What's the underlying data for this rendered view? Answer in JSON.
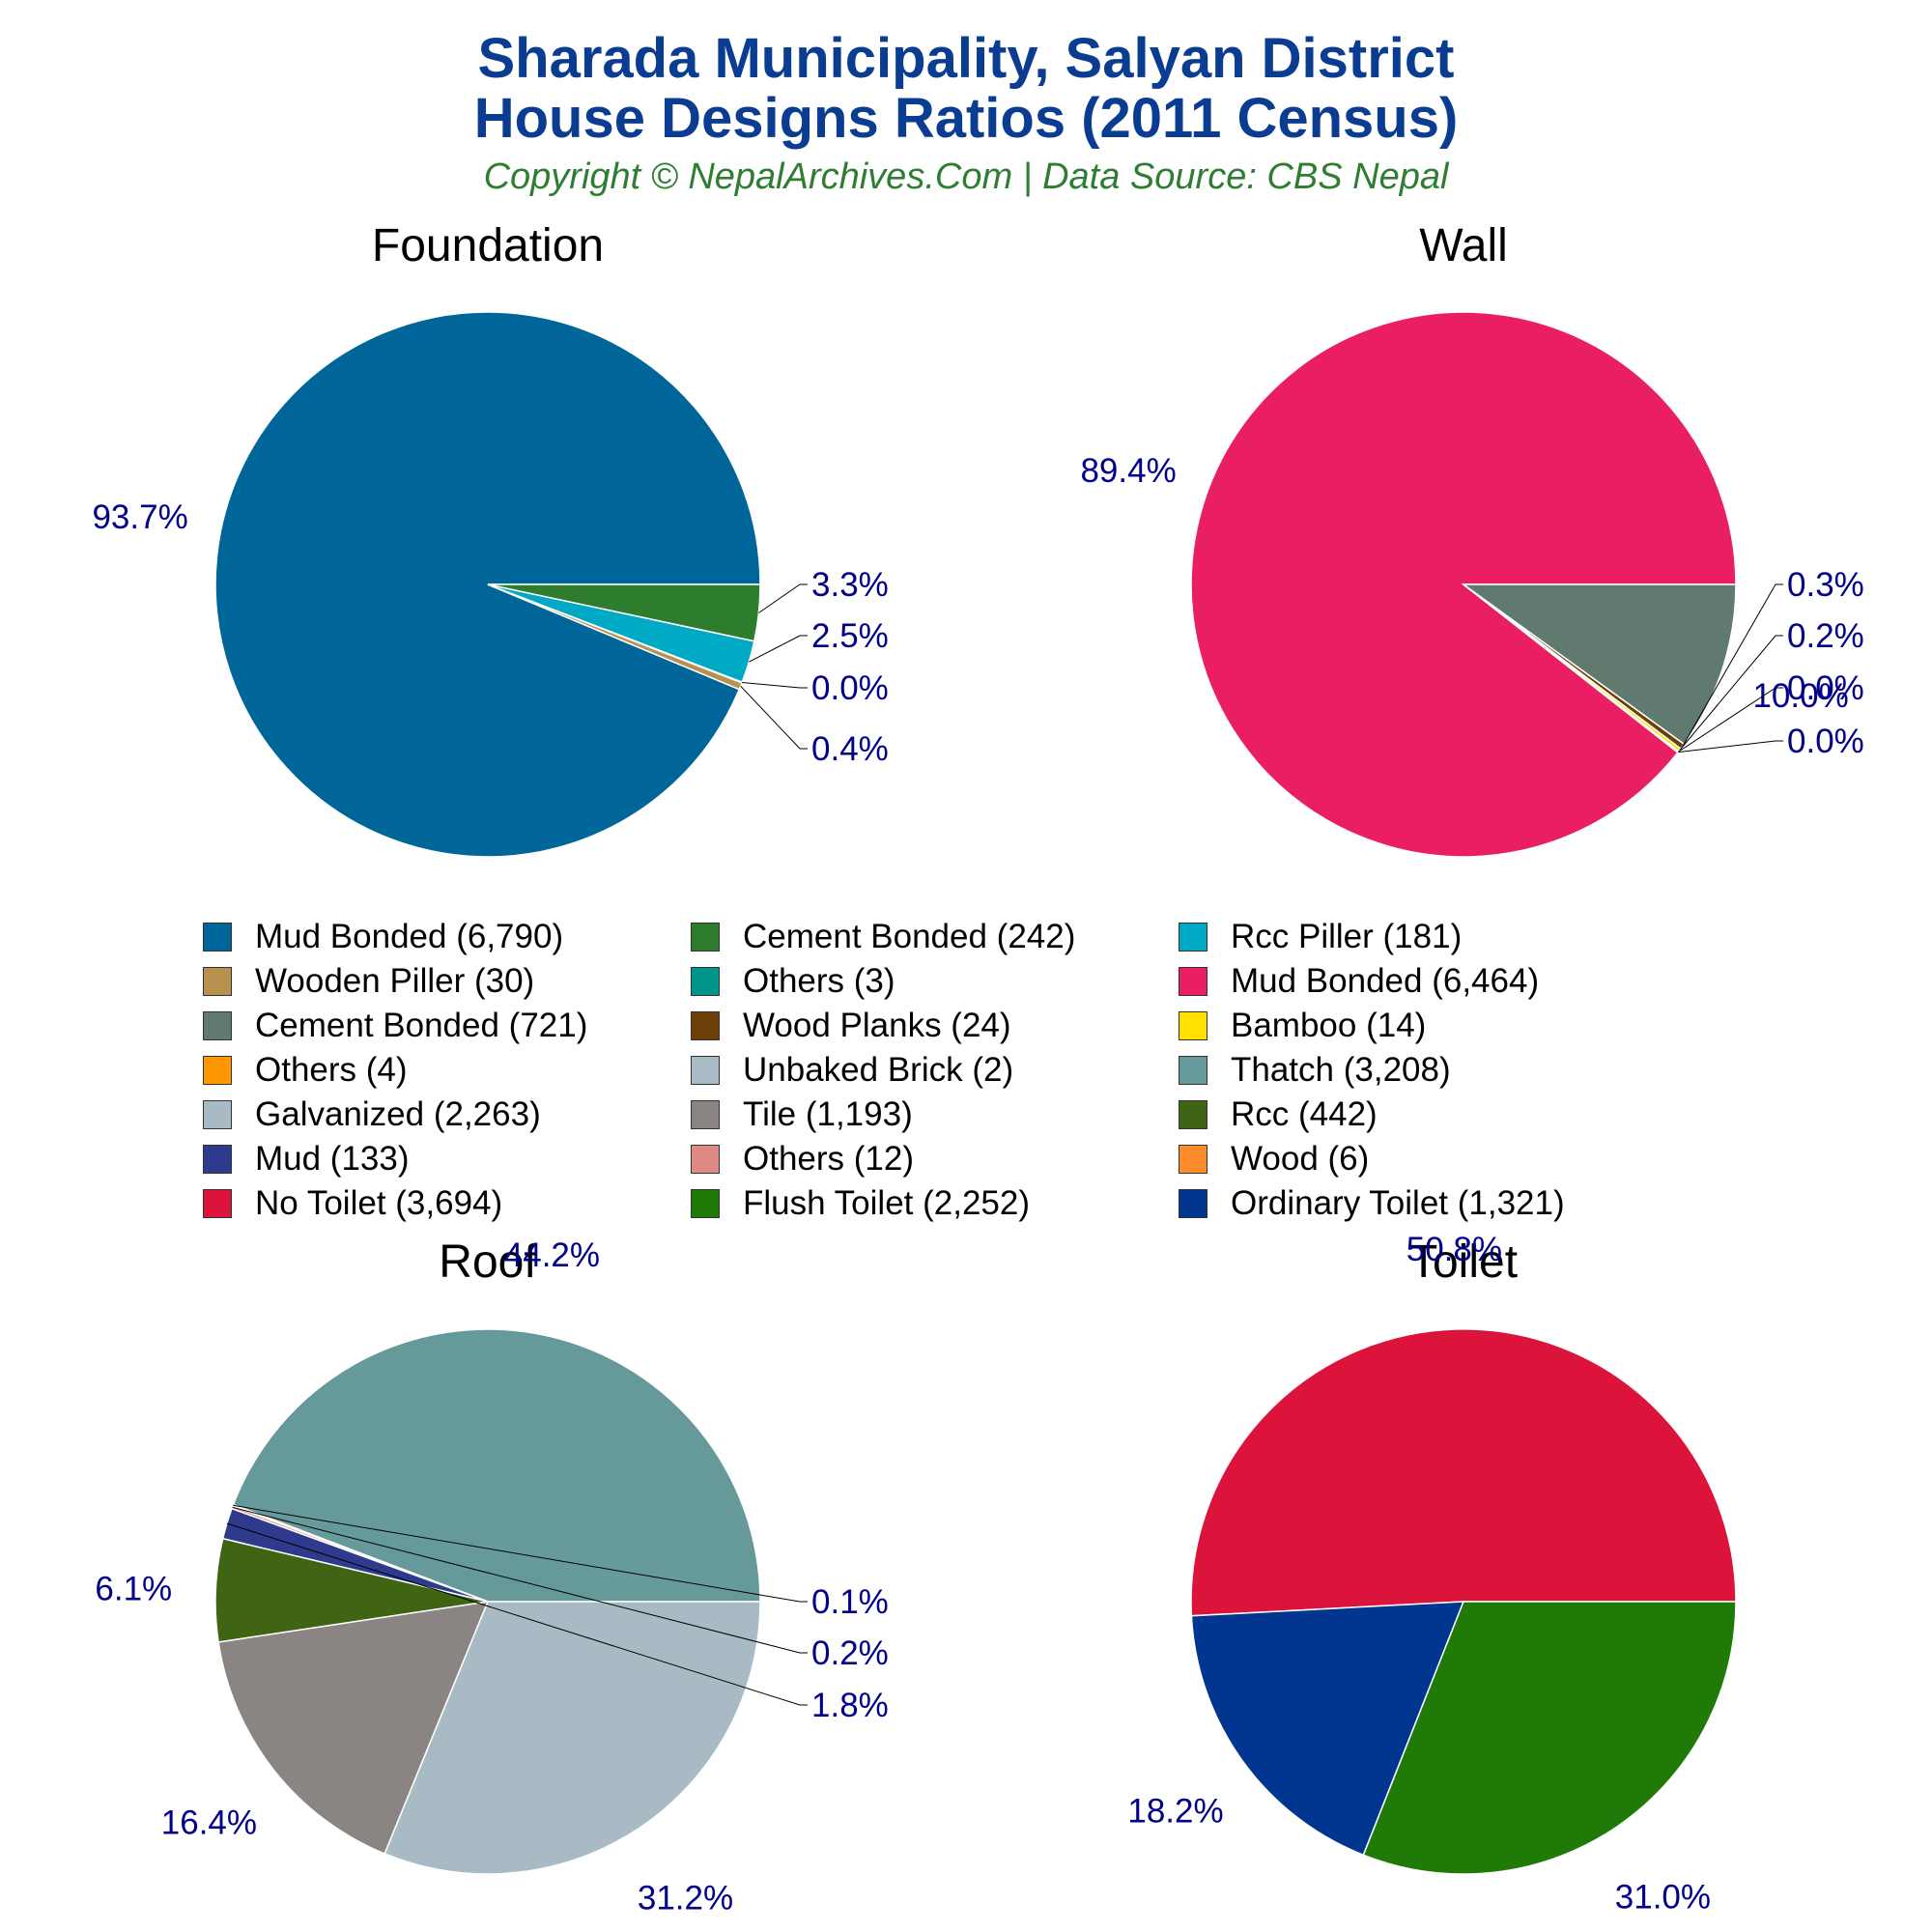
{
  "header": {
    "title_line1": "Sharada Municipality, Salyan District",
    "title_line2": "House Designs Ratios (2011 Census)",
    "subtitle": "Copyright © NepalArchives.Com | Data Source: CBS Nepal"
  },
  "chart_data": [
    {
      "type": "pie",
      "title": "Foundation",
      "slices": [
        {
          "label": "Mud Bonded (6,790)",
          "value": 6790,
          "pct": "93.7%",
          "color": "#006699"
        },
        {
          "label": "Wooden Piller (30)",
          "value": 30,
          "pct": "0.4%",
          "color": "#b8914f"
        },
        {
          "label": "Others (3)",
          "value": 3,
          "pct": "0.0%",
          "color": "#00958a"
        },
        {
          "label": "Rcc Piller (181)",
          "value": 181,
          "pct": "2.5%",
          "color": "#00aac4"
        },
        {
          "label": "Cement Bonded (242)",
          "value": 242,
          "pct": "3.3%",
          "color": "#2e7d2e"
        }
      ]
    },
    {
      "type": "pie",
      "title": "Wall",
      "slices": [
        {
          "label": "Mud Bonded (6,464)",
          "value": 6464,
          "pct": "89.4%",
          "color": "#e91e63"
        },
        {
          "label": "Others (4)",
          "value": 4,
          "pct": "0.0%",
          "color": "#ff9800"
        },
        {
          "label": "Unbaked Brick (2)",
          "value": 2,
          "pct": "0.0%",
          "color": "#a9bcc6"
        },
        {
          "label": "Bamboo (14)",
          "value": 14,
          "pct": "0.2%",
          "color": "#ffe000"
        },
        {
          "label": "Wood Planks (24)",
          "value": 24,
          "pct": "0.3%",
          "color": "#6b3e0a"
        },
        {
          "label": "Cement Bonded (721)",
          "value": 721,
          "pct": "10.0%",
          "color": "#617a70"
        }
      ]
    },
    {
      "type": "pie",
      "title": "Roof",
      "slices": [
        {
          "label": "Thatch (3,208)",
          "value": 3208,
          "pct": "44.2%",
          "color": "#669999"
        },
        {
          "label": "Wood (6)",
          "value": 6,
          "pct": "0.1%",
          "color": "#ff8c2a"
        },
        {
          "label": "Others (12)",
          "value": 12,
          "pct": "0.2%",
          "color": "#e08a86"
        },
        {
          "label": "Mud (133)",
          "value": 133,
          "pct": "1.8%",
          "color": "#2e3a8c"
        },
        {
          "label": "Rcc (442)",
          "value": 442,
          "pct": "6.1%",
          "color": "#3f6414"
        },
        {
          "label": "Tile (1,193)",
          "value": 1193,
          "pct": "16.4%",
          "color": "#8a8582"
        },
        {
          "label": "Galvanized (2,263)",
          "value": 2263,
          "pct": "31.2%",
          "color": "#a8bbc4"
        }
      ]
    },
    {
      "type": "pie",
      "title": "Toilet",
      "slices": [
        {
          "label": "No Toilet (3,694)",
          "value": 3694,
          "pct": "50.8%",
          "color": "#dc143c"
        },
        {
          "label": "Ordinary Toilet (1,321)",
          "value": 1321,
          "pct": "18.2%",
          "color": "#003590"
        },
        {
          "label": "Flush Toilet (2,252)",
          "value": 2252,
          "pct": "31.0%",
          "color": "#1f7a08"
        }
      ]
    }
  ],
  "legend": [
    {
      "label": "Mud Bonded (6,790)",
      "color": "#006699"
    },
    {
      "label": "Cement Bonded (242)",
      "color": "#2e7d2e"
    },
    {
      "label": "Rcc Piller (181)",
      "color": "#00aac4"
    },
    {
      "label": "Wooden Piller (30)",
      "color": "#b8914f"
    },
    {
      "label": "Others (3)",
      "color": "#00958a"
    },
    {
      "label": "Mud Bonded (6,464)",
      "color": "#e91e63"
    },
    {
      "label": "Cement Bonded (721)",
      "color": "#617a70"
    },
    {
      "label": "Wood Planks (24)",
      "color": "#6b3e0a"
    },
    {
      "label": "Bamboo (14)",
      "color": "#ffe000"
    },
    {
      "label": "Others (4)",
      "color": "#ff9800"
    },
    {
      "label": "Unbaked Brick (2)",
      "color": "#a9bcc6"
    },
    {
      "label": "Thatch (3,208)",
      "color": "#669999"
    },
    {
      "label": "Galvanized (2,263)",
      "color": "#a8bbc4"
    },
    {
      "label": "Tile (1,193)",
      "color": "#8a8582"
    },
    {
      "label": "Rcc (442)",
      "color": "#3f6414"
    },
    {
      "label": "Mud (133)",
      "color": "#2e3a8c"
    },
    {
      "label": "Others (12)",
      "color": "#e08a86"
    },
    {
      "label": "Wood (6)",
      "color": "#ff8c2a"
    },
    {
      "label": "No Toilet (3,694)",
      "color": "#dc143c"
    },
    {
      "label": "Flush Toilet (2,252)",
      "color": "#1f7a08"
    },
    {
      "label": "Ordinary Toilet (1,321)",
      "color": "#003590"
    }
  ]
}
